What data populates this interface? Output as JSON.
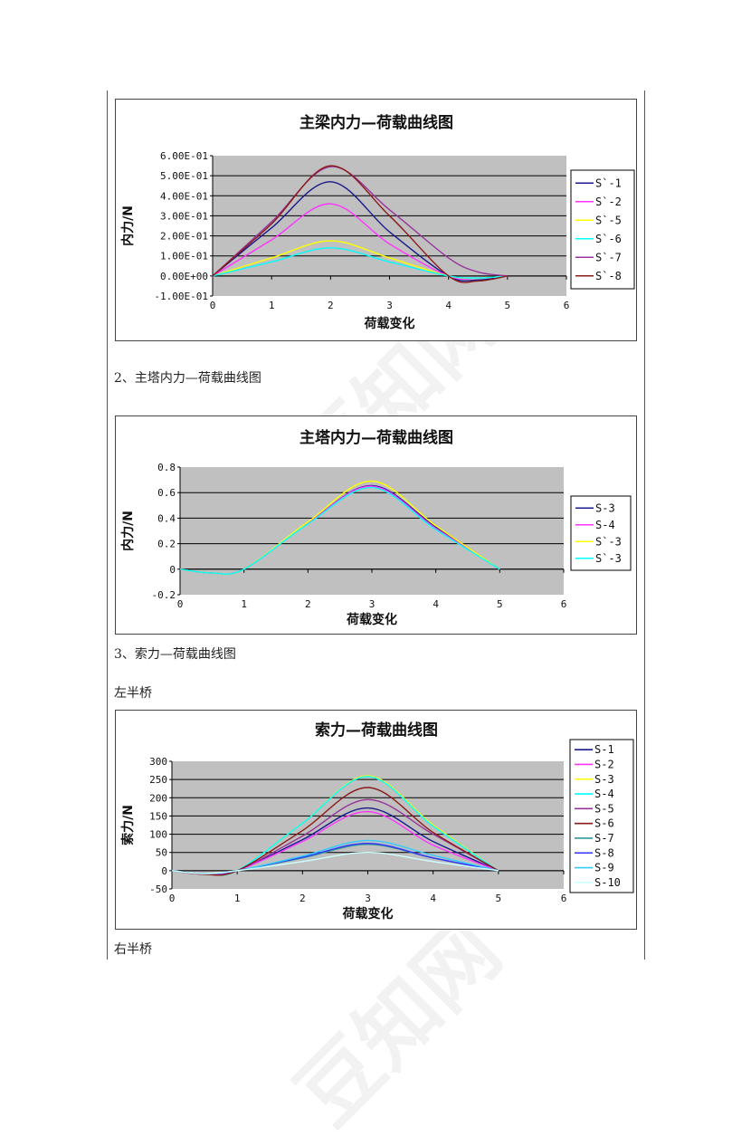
{
  "captions": {
    "section2": "2、主塔内力—荷载曲线图",
    "section3": "3、索力—荷载曲线图",
    "left_half": "左半桥",
    "right_half": "右半桥"
  },
  "watermark": "豆知网",
  "chart_data": [
    {
      "id": "girder",
      "type": "line",
      "title": "主梁内力—荷载曲线图",
      "xlabel": "荷载变化",
      "ylabel": "内力/N",
      "xlim": [
        0,
        6
      ],
      "ylim": [
        -0.1,
        0.6
      ],
      "x_ticks": [
        "0",
        "1",
        "2",
        "3",
        "4",
        "5",
        "6"
      ],
      "y_ticks": [
        "6.00E-01",
        "5.00E-01",
        "4.00E-01",
        "3.00E-01",
        "2.00E-01",
        "1.00E-01",
        "0.00E+00",
        "-1.00E-01"
      ],
      "grid": true,
      "legend_position": "right",
      "x": [
        0,
        1,
        2,
        3,
        4,
        4.5,
        5
      ],
      "series": [
        {
          "name": "S`-1",
          "color": "#1a1a8c",
          "values": [
            0,
            0.24,
            0.47,
            0.22,
            0.0,
            -0.02,
            0.0
          ]
        },
        {
          "name": "S`-2",
          "color": "#ff33ff",
          "values": [
            0,
            0.18,
            0.36,
            0.16,
            0.0,
            -0.01,
            0.0
          ]
        },
        {
          "name": "S`-5",
          "color": "#ffff00",
          "values": [
            0,
            0.09,
            0.175,
            0.09,
            0.0,
            -0.01,
            0.0
          ]
        },
        {
          "name": "S`-6",
          "color": "#00ffff",
          "values": [
            0,
            0.07,
            0.14,
            0.07,
            0.0,
            -0.01,
            0.0
          ]
        },
        {
          "name": "S`-7",
          "color": "#993399",
          "values": [
            0,
            0.27,
            0.545,
            0.33,
            0.09,
            0.02,
            0.0
          ]
        },
        {
          "name": "S`-8",
          "color": "#8b1a1a",
          "values": [
            0,
            0.26,
            0.55,
            0.3,
            0.0,
            -0.025,
            0.0
          ]
        }
      ]
    },
    {
      "id": "tower",
      "type": "line",
      "title": "主塔内力—荷载曲线图",
      "xlabel": "荷载变化",
      "ylabel": "内力/N",
      "xlim": [
        0,
        6
      ],
      "ylim": [
        -0.2,
        0.8
      ],
      "x_ticks": [
        "0",
        "1",
        "2",
        "3",
        "4",
        "5",
        "6"
      ],
      "y_ticks": [
        "0.8",
        "0.6",
        "0.4",
        "0.2",
        "0",
        "-0.2"
      ],
      "grid": true,
      "legend_position": "right",
      "x": [
        0,
        0.5,
        1,
        2,
        3,
        4,
        5
      ],
      "series": [
        {
          "name": "S-3",
          "color": "#1a1a8c",
          "values": [
            0,
            -0.03,
            0,
            0.36,
            0.655,
            0.33,
            0
          ]
        },
        {
          "name": "S-4",
          "color": "#ff33ff",
          "values": [
            0,
            -0.03,
            0,
            0.36,
            0.65,
            0.32,
            0
          ]
        },
        {
          "name": "S`-3",
          "color": "#ffff00",
          "values": [
            0,
            -0.03,
            0,
            0.37,
            0.69,
            0.34,
            0
          ]
        },
        {
          "name": "S`-3",
          "color": "#00ffff",
          "values": [
            0,
            -0.03,
            0,
            0.355,
            0.64,
            0.31,
            0
          ]
        }
      ]
    },
    {
      "id": "cable-left",
      "type": "line",
      "title": "索力—荷载曲线图",
      "xlabel": "荷载变化",
      "ylabel": "索力/N",
      "xlim": [
        0,
        6
      ],
      "ylim": [
        -50,
        300
      ],
      "x_ticks": [
        "0",
        "1",
        "2",
        "3",
        "4",
        "5",
        "6"
      ],
      "y_ticks": [
        "300",
        "250",
        "200",
        "150",
        "100",
        "50",
        "0",
        "-50"
      ],
      "grid": true,
      "legend_position": "right",
      "x": [
        0,
        0.5,
        1,
        2,
        3,
        4,
        5
      ],
      "series": [
        {
          "name": "S-1",
          "color": "#1a1a8c",
          "values": [
            0,
            -8,
            0,
            85,
            172,
            80,
            0
          ]
        },
        {
          "name": "S-2",
          "color": "#ff33ff",
          "values": [
            0,
            -8,
            0,
            80,
            162,
            70,
            0
          ]
        },
        {
          "name": "S-3",
          "color": "#ffff00",
          "values": [
            0,
            -8,
            0,
            130,
            260,
            125,
            0
          ]
        },
        {
          "name": "S-4",
          "color": "#00ffff",
          "values": [
            0,
            -8,
            0,
            130,
            258,
            122,
            0
          ]
        },
        {
          "name": "S-5",
          "color": "#993399",
          "values": [
            0,
            -8,
            0,
            95,
            195,
            100,
            0
          ]
        },
        {
          "name": "S-6",
          "color": "#8b1a1a",
          "values": [
            0,
            -10,
            0,
            110,
            228,
            105,
            0
          ]
        },
        {
          "name": "S-7",
          "color": "#339999",
          "values": [
            0,
            -8,
            0,
            35,
            72,
            35,
            0
          ]
        },
        {
          "name": "S-8",
          "color": "#3333ff",
          "values": [
            0,
            -8,
            0,
            37,
            75,
            35,
            0
          ]
        },
        {
          "name": "S-9",
          "color": "#33ccff",
          "values": [
            0,
            -8,
            0,
            40,
            83,
            42,
            0
          ]
        },
        {
          "name": "S-10",
          "color": "#ccffff",
          "values": [
            0,
            -8,
            0,
            25,
            50,
            25,
            0
          ]
        }
      ]
    }
  ]
}
